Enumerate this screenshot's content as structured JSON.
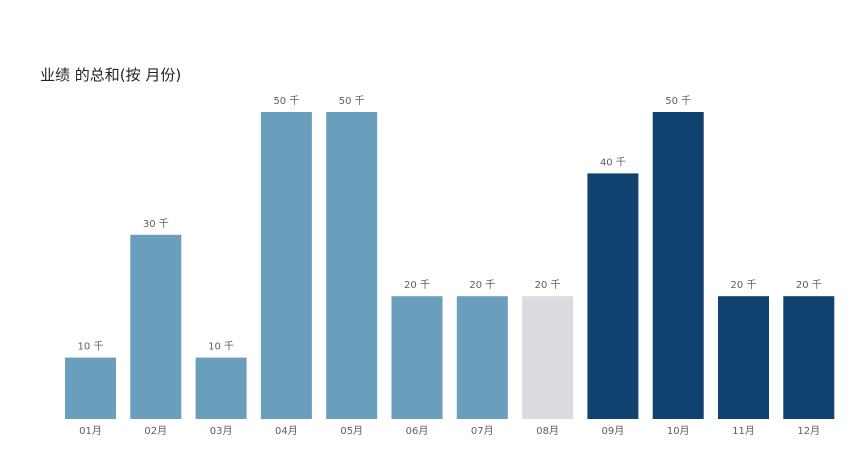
{
  "chart_data": {
    "type": "bar",
    "title": "业绩 的总和(按 月份)",
    "categories": [
      "01月",
      "02月",
      "03月",
      "04月",
      "05月",
      "06月",
      "07月",
      "08月",
      "09月",
      "10月",
      "11月",
      "12月"
    ],
    "values": [
      10000,
      30000,
      10000,
      50000,
      50000,
      20000,
      20000,
      20000,
      40000,
      50000,
      20000,
      20000
    ],
    "data_labels": [
      "10 千",
      "30 千",
      "10 千",
      "50 千",
      "50 千",
      "20 千",
      "20 千",
      "20 千",
      "40 千",
      "50 千",
      "20 千",
      "20 千"
    ],
    "ylim": [
      0,
      50000
    ],
    "grid": false,
    "legend": "none",
    "colors": {
      "first_half": "#6a9ebd",
      "highlight": "#dcdce0",
      "second_half": "#0f426e"
    },
    "bar_color_groups": [
      "first_half",
      "first_half",
      "first_half",
      "first_half",
      "first_half",
      "first_half",
      "first_half",
      "highlight",
      "second_half",
      "second_half",
      "second_half",
      "second_half"
    ]
  }
}
